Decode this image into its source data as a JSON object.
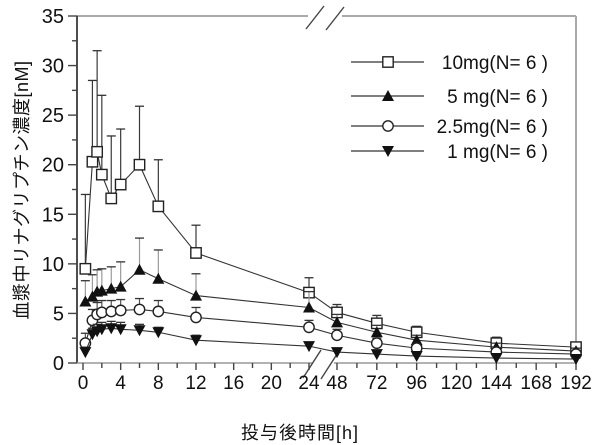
{
  "chart_data": {
    "type": "line",
    "title": "",
    "xlabel": "投与後時間[h]",
    "ylabel": "血漿中リナグリプチン濃度[nM]",
    "ylim": [
      0,
      35
    ],
    "y_ticks": [
      0,
      5,
      10,
      15,
      20,
      25,
      30,
      35
    ],
    "y_minor_step": 2.5,
    "x_axis_break": {
      "left_range": [
        0,
        24
      ],
      "right_range": [
        48,
        192
      ]
    },
    "x_ticks_left": [
      0,
      4,
      8,
      12,
      16,
      20,
      24
    ],
    "x_minor_step_left": 2,
    "x_ticks_right": [
      48,
      72,
      96,
      120,
      144,
      168,
      192
    ],
    "x_minor_step_right": 12,
    "grid": false,
    "legend_position": "upper-right",
    "x_hours": [
      0.25,
      1,
      1.5,
      2,
      3,
      4,
      6,
      8,
      12,
      24,
      48,
      72,
      96,
      144,
      192
    ],
    "series": [
      {
        "name": "10mg(N= 6 )",
        "dose_mg": 10,
        "marker": "open-square",
        "line_color": "#333333",
        "error_color": "#3a3a3a",
        "values": [
          9.5,
          20.3,
          21.3,
          19.0,
          16.6,
          18.0,
          20.0,
          15.8,
          11.1,
          7.1,
          5.1,
          4.0,
          3.1,
          2.0,
          1.6
        ],
        "err_top": [
          17.0,
          28.5,
          31.5,
          27.0,
          22.9,
          23.6,
          25.9,
          20.5,
          13.9,
          8.6,
          5.9,
          4.8,
          3.7,
          2.6,
          2.0
        ]
      },
      {
        "name": "5 mg(N= 6 )",
        "dose_mg": 5,
        "marker": "filled-triangle-up",
        "line_color": "#333333",
        "error_color": "#9a9a9a",
        "values": [
          6.2,
          6.7,
          7.2,
          7.3,
          7.5,
          7.7,
          9.4,
          8.5,
          6.8,
          5.6,
          4.1,
          3.1,
          2.3,
          1.6,
          1.2
        ],
        "err_top": [
          8.3,
          8.9,
          9.4,
          9.5,
          9.7,
          10.2,
          12.6,
          11.4,
          9.0,
          7.2,
          4.9,
          3.8,
          2.8,
          2.0,
          1.5
        ]
      },
      {
        "name": "2.5mg(N= 6 )",
        "dose_mg": 2.5,
        "marker": "open-circle",
        "line_color": "#333333",
        "error_color": "#555555",
        "values": [
          2.0,
          4.3,
          4.9,
          5.1,
          5.2,
          5.3,
          5.4,
          5.2,
          4.6,
          3.6,
          2.8,
          2.0,
          1.5,
          1.1,
          0.9
        ],
        "err_top": [
          3.0,
          5.4,
          6.1,
          6.3,
          6.3,
          6.4,
          6.5,
          6.3,
          5.6,
          4.3,
          3.4,
          2.5,
          1.9,
          1.4,
          1.1
        ]
      },
      {
        "name": "1 mg(N= 6 )",
        "dose_mg": 1,
        "marker": "filled-triangle-down",
        "line_color": "#333333",
        "error_color": "#3a3a3a",
        "values": [
          1.1,
          2.9,
          3.2,
          3.4,
          3.5,
          3.4,
          3.3,
          3.1,
          2.3,
          1.7,
          1.1,
          0.9,
          0.7,
          0.5,
          0.4
        ],
        "err_top": [
          1.6,
          3.5,
          3.9,
          4.1,
          4.2,
          4.1,
          3.9,
          3.6,
          2.8,
          2.1,
          1.4,
          1.1,
          0.9,
          0.7,
          0.5
        ]
      }
    ],
    "colors": {
      "frame": "#a9a9a9",
      "x_axis": "#999999",
      "y_axis": "#222222",
      "tick": "#444444",
      "text": "#111111",
      "marker_fill": "#111111",
      "marker_stroke": "#222222"
    }
  }
}
